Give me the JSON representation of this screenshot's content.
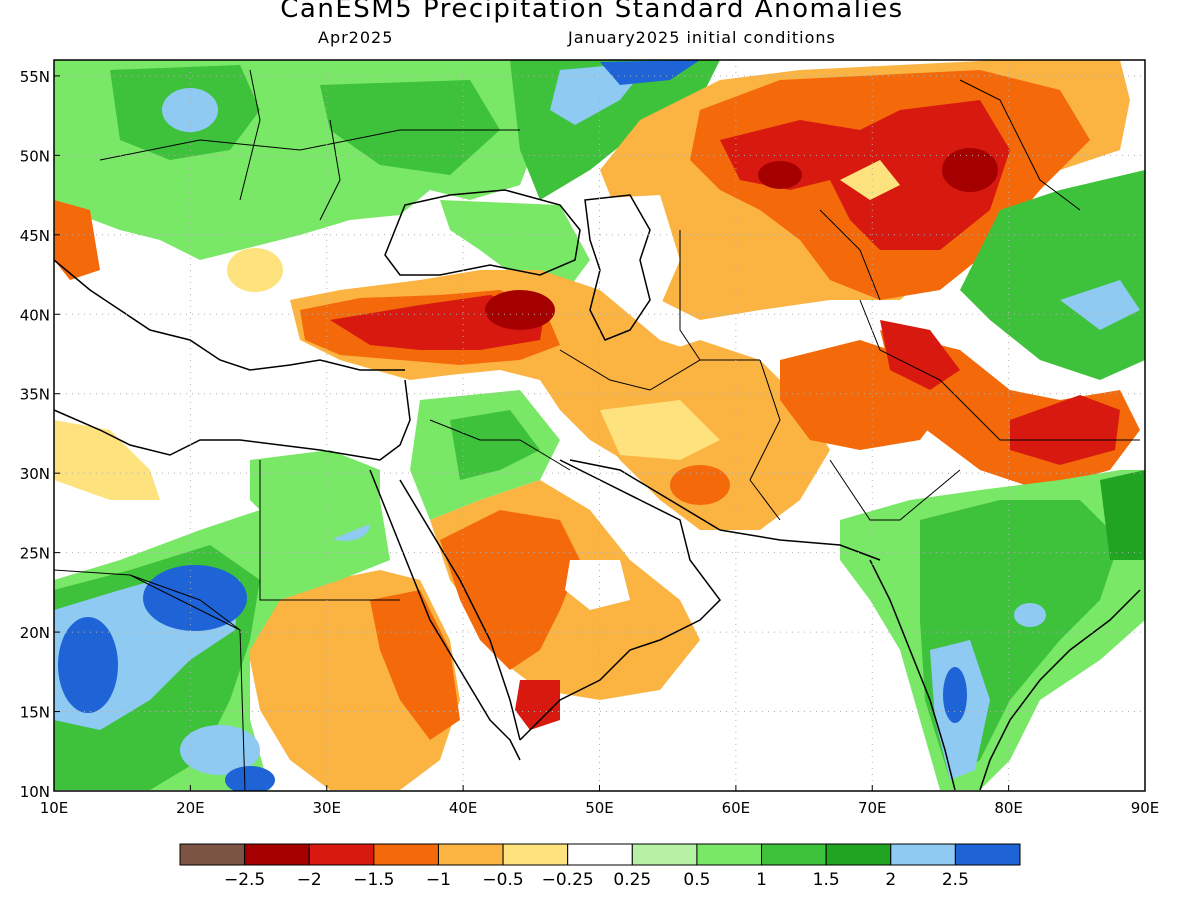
{
  "title": "CanESM5 Precipitation Standard Anomalies",
  "subtitle_left": "Apr2025",
  "subtitle_right": "January2025 initial conditions",
  "map": {
    "lon_range": [
      10,
      90
    ],
    "lat_range": [
      10,
      56
    ],
    "x_ticks": [
      "10E",
      "20E",
      "30E",
      "40E",
      "50E",
      "60E",
      "70E",
      "80E",
      "90E"
    ],
    "y_ticks": [
      "10N",
      "15N",
      "20N",
      "25N",
      "30N",
      "35N",
      "40N",
      "45N",
      "50N",
      "55N"
    ],
    "grid": "dotted"
  },
  "colorbar": {
    "colors": [
      "#7b5444",
      "#a50000",
      "#d7190f",
      "#f46a0b",
      "#fbb442",
      "#fde27d",
      "#ffffff",
      "#b7f1a5",
      "#78e866",
      "#3ec13b",
      "#21a422",
      "#8ecaf2",
      "#1e64d6"
    ],
    "labels": [
      "−2.5",
      "−2",
      "−1.5",
      "−1",
      "−0.5",
      "−0.25",
      "0.25",
      "0.5",
      "1",
      "1.5",
      "2",
      "2.5"
    ]
  }
}
